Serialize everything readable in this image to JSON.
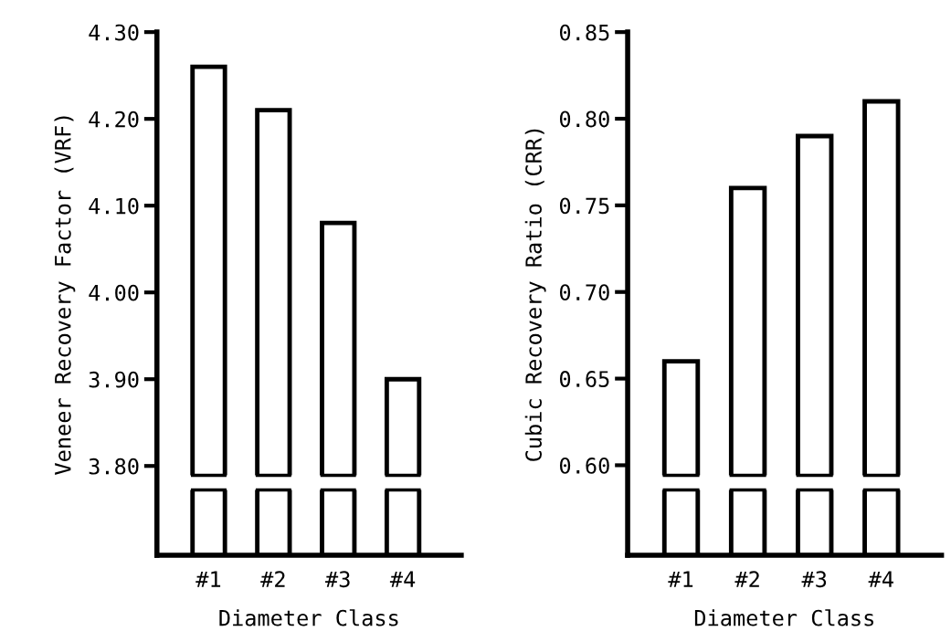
{
  "chart_data": [
    {
      "type": "bar",
      "ylabel": "Veneer Recovery Factor (VRF)",
      "xlabel": "Diameter Class",
      "categories": [
        "#1",
        "#2",
        "#3",
        "#4"
      ],
      "values": [
        4.26,
        4.21,
        4.08,
        3.9
      ],
      "color": "#ffffff",
      "ylim": [
        3.697,
        4.3
      ],
      "yticks": [
        {
          "value": 3.8,
          "label": "3.80"
        },
        {
          "value": 3.9,
          "label": "3.90"
        },
        {
          "value": 4.0,
          "label": "4.00"
        },
        {
          "value": 4.1,
          "label": "4.10"
        },
        {
          "value": 4.2,
          "label": "4.20"
        },
        {
          "value": 4.3,
          "label": "4.30"
        }
      ],
      "grid": false
    },
    {
      "type": "bar",
      "ylabel": "Cubic Recovery Ratio (CRR)",
      "xlabel": "Diameter Class",
      "categories": [
        "#1",
        "#2",
        "#3",
        "#4"
      ],
      "values": [
        0.66,
        0.76,
        0.79,
        0.81
      ],
      "color": "#ffffff",
      "ylim": [
        0.548,
        0.85
      ],
      "yticks": [
        {
          "value": 0.6,
          "label": "0.60"
        },
        {
          "value": 0.65,
          "label": "0.65"
        },
        {
          "value": 0.7,
          "label": "0.70"
        },
        {
          "value": 0.75,
          "label": "0.75"
        },
        {
          "value": 0.8,
          "label": "0.80"
        },
        {
          "value": 0.85,
          "label": "0.85"
        }
      ],
      "grid": false
    }
  ]
}
